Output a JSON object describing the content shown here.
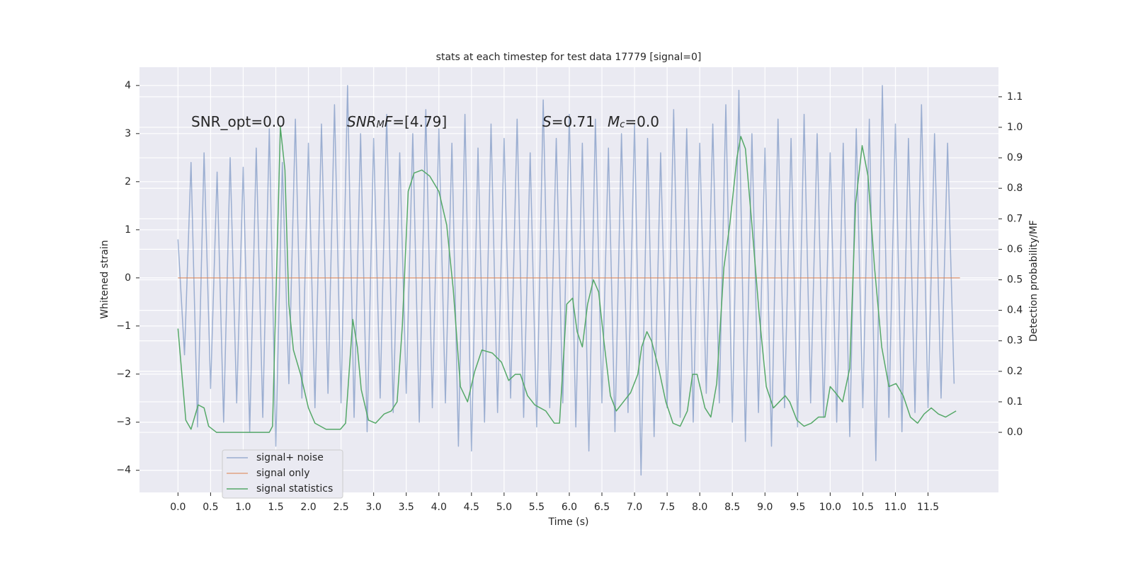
{
  "chart_data": {
    "type": "line",
    "title": "stats at each timestep for test data 17779 [signal=0]",
    "xlabel": "Time (s)",
    "ylabel": "Whitened strain",
    "y2label": "Detection probability/MF",
    "annotations": [
      {
        "parts": [
          {
            "text": "SNR_opt=0.0"
          }
        ]
      },
      {
        "parts": [
          {
            "text": "SNR",
            "italic": true
          },
          {
            "text": "M",
            "italic": true,
            "sub": true
          },
          {
            "text": "F",
            "italic": true
          },
          {
            "text": "=[4.79]"
          }
        ]
      },
      {
        "parts": [
          {
            "text": "S",
            "italic": true
          },
          {
            "text": "=0.71"
          }
        ]
      },
      {
        "parts": [
          {
            "text": "M",
            "italic": true
          },
          {
            "text": "c",
            "italic": true,
            "sub": true
          },
          {
            "text": "=0.0"
          }
        ]
      }
    ],
    "xlim": [
      -0.59,
      12.58
    ],
    "ylim": [
      -4.46,
      4.38
    ],
    "y2lim": [
      -0.197,
      1.197
    ],
    "xticks": [
      {
        "value": 0,
        "label": "0.0"
      },
      0.5,
      {
        "value": 1,
        "label": "1.0"
      },
      1.5,
      {
        "value": 2,
        "label": "2.0"
      },
      2.5,
      {
        "value": 3,
        "label": "3.0"
      },
      3.5,
      {
        "value": 4,
        "label": "4.0"
      },
      4.5,
      {
        "value": 5,
        "label": "5.0"
      },
      5.5,
      {
        "value": 6,
        "label": "6.0"
      },
      6.5,
      {
        "value": 7,
        "label": "7.0"
      },
      7.5,
      {
        "value": 8,
        "label": "8.0"
      },
      8.5,
      {
        "value": 9,
        "label": "9.0"
      },
      9.5,
      {
        "value": 10,
        "label": "10.0"
      },
      10.5,
      {
        "value": 11,
        "label": "11.0"
      },
      11.5
    ],
    "yticks": [
      {
        "value": -4,
        "label": "−4"
      },
      {
        "value": -3,
        "label": "−3"
      },
      {
        "value": -2,
        "label": "−2"
      },
      {
        "value": -1,
        "label": "−1"
      },
      0,
      1,
      2,
      3,
      4
    ],
    "y2ticks": [
      {
        "value": 0,
        "label": "0.0"
      },
      0.1,
      0.2,
      0.3,
      0.4,
      0.5,
      0.6,
      0.7,
      0.8,
      0.9,
      {
        "value": 1,
        "label": "1.0"
      },
      1.1
    ],
    "grid": true,
    "legend": "lower left",
    "series": [
      {
        "name": "signal+ noise",
        "color": "#4c72b0",
        "opacity": 0.5,
        "x": [
          0,
          0.1,
          0.2,
          0.3,
          0.4,
          0.5,
          0.6,
          0.7,
          0.8,
          0.9,
          1,
          1.1,
          1.2,
          1.3,
          1.4,
          1.5,
          1.6,
          1.7,
          1.8,
          1.9,
          2,
          2.1,
          2.2,
          2.3,
          2.4,
          2.5,
          2.6,
          2.7,
          2.8,
          2.9,
          3,
          3.1,
          3.2,
          3.3,
          3.4,
          3.5,
          3.6,
          3.7,
          3.8,
          3.9,
          4,
          4.1,
          4.2,
          4.3,
          4.4,
          4.5,
          4.6,
          4.7,
          4.8,
          4.9,
          5,
          5.1,
          5.2,
          5.3,
          5.4,
          5.5,
          5.6,
          5.7,
          5.8,
          5.9,
          6,
          6.1,
          6.2,
          6.3,
          6.4,
          6.5,
          6.6,
          6.7,
          6.8,
          6.9,
          7,
          7.1,
          7.2,
          7.3,
          7.4,
          7.5,
          7.6,
          7.7,
          7.8,
          7.9,
          8,
          8.1,
          8.2,
          8.3,
          8.4,
          8.5,
          8.6,
          8.7,
          8.8,
          8.9,
          9,
          9.1,
          9.2,
          9.3,
          9.4,
          9.5,
          9.6,
          9.7,
          9.8,
          9.9,
          10,
          10.1,
          10.2,
          10.3,
          10.4,
          10.5,
          10.6,
          10.7,
          10.8,
          10.9,
          11,
          11.1,
          11.2,
          11.3,
          11.4,
          11.5,
          11.6,
          11.7,
          11.8,
          11.9
        ],
        "values": [
          0.8,
          -1.6,
          2.4,
          -3.1,
          2.6,
          -2.3,
          2.2,
          -3.0,
          2.5,
          -2.6,
          2.3,
          -3.2,
          2.7,
          -2.9,
          3.1,
          -3.5,
          2.4,
          -2.2,
          3.3,
          -2.5,
          2.8,
          -2.7,
          3.2,
          -2.4,
          3.6,
          -2.6,
          4.0,
          -2.9,
          3.0,
          -3.2,
          2.9,
          -2.5,
          3.4,
          -2.8,
          2.6,
          -2.4,
          3.0,
          -3.0,
          3.5,
          -2.7,
          3.1,
          -2.6,
          2.8,
          -3.5,
          3.4,
          -3.6,
          2.7,
          -3.0,
          3.2,
          -2.8,
          2.9,
          -2.5,
          3.3,
          -2.9,
          2.6,
          -3.1,
          3.7,
          -2.7,
          2.9,
          -2.6,
          3.4,
          -3.1,
          2.8,
          -3.6,
          3.3,
          -2.6,
          2.7,
          -3.2,
          3.0,
          -2.8,
          3.2,
          -4.1,
          2.9,
          -3.3,
          2.6,
          -2.7,
          3.5,
          -2.9,
          3.1,
          -3.0,
          2.8,
          -2.4,
          3.2,
          -2.6,
          3.6,
          -3.0,
          3.9,
          -3.4,
          3.0,
          -2.8,
          2.7,
          -3.5,
          3.3,
          -2.7,
          2.9,
          -3.1,
          3.4,
          -2.6,
          3.0,
          -2.9,
          2.6,
          -3.0,
          2.8,
          -3.3,
          3.1,
          -2.7,
          3.3,
          -3.8,
          4.0,
          -2.9,
          3.2,
          -3.2,
          2.9,
          -2.8,
          3.6,
          -2.7,
          3.0,
          -2.5,
          2.8,
          -2.2
        ]
      },
      {
        "name": "signal only",
        "color": "#dd8452",
        "opacity": 0.7,
        "x": [
          0,
          11.99
        ],
        "values": [
          0,
          0
        ]
      },
      {
        "name": "signal statistics",
        "color": "#55a868",
        "opacity": 1,
        "axis": "y2",
        "x": [
          0,
          0.12,
          0.2,
          0.31,
          0.4,
          0.47,
          0.59,
          1.4,
          1.45,
          1.57,
          1.64,
          1.7,
          1.77,
          1.88,
          2.0,
          2.1,
          2.27,
          2.49,
          2.57,
          2.68,
          2.75,
          2.81,
          2.92,
          3.03,
          3.16,
          3.27,
          3.36,
          3.44,
          3.53,
          3.62,
          3.74,
          3.86,
          4.0,
          4.12,
          4.22,
          4.33,
          4.44,
          4.55,
          4.66,
          4.82,
          4.96,
          5.07,
          5.17,
          5.25,
          5.36,
          5.47,
          5.64,
          5.77,
          5.85,
          5.96,
          6.05,
          6.12,
          6.2,
          6.28,
          6.37,
          6.45,
          6.53,
          6.63,
          6.72,
          6.83,
          6.94,
          7.05,
          7.11,
          7.19,
          7.26,
          7.37,
          7.48,
          7.59,
          7.7,
          7.81,
          7.89,
          7.96,
          8.08,
          8.17,
          8.26,
          8.37,
          8.46,
          8.57,
          8.63,
          8.7,
          8.8,
          8.91,
          9.02,
          9.13,
          9.22,
          9.31,
          9.38,
          9.49,
          9.6,
          9.71,
          9.82,
          9.92,
          10.0,
          10.08,
          10.19,
          10.3,
          10.39,
          10.49,
          10.58,
          10.68,
          10.79,
          10.9,
          11.01,
          11.12,
          11.23,
          11.34,
          11.44,
          11.55,
          11.66,
          11.77,
          11.93
        ],
        "values": [
          0.34,
          0.04,
          0.01,
          0.09,
          0.08,
          0.02,
          0.0,
          0.0,
          0.02,
          1.0,
          0.86,
          0.42,
          0.27,
          0.19,
          0.08,
          0.03,
          0.01,
          0.01,
          0.03,
          0.37,
          0.28,
          0.14,
          0.04,
          0.03,
          0.06,
          0.07,
          0.1,
          0.35,
          0.79,
          0.85,
          0.86,
          0.84,
          0.79,
          0.68,
          0.47,
          0.15,
          0.1,
          0.2,
          0.27,
          0.26,
          0.23,
          0.17,
          0.19,
          0.19,
          0.12,
          0.09,
          0.07,
          0.03,
          0.03,
          0.42,
          0.44,
          0.33,
          0.28,
          0.42,
          0.5,
          0.46,
          0.3,
          0.12,
          0.07,
          0.1,
          0.13,
          0.19,
          0.28,
          0.33,
          0.3,
          0.21,
          0.1,
          0.03,
          0.02,
          0.07,
          0.19,
          0.19,
          0.08,
          0.05,
          0.16,
          0.54,
          0.68,
          0.9,
          0.97,
          0.93,
          0.68,
          0.39,
          0.15,
          0.08,
          0.1,
          0.12,
          0.1,
          0.04,
          0.02,
          0.03,
          0.05,
          0.05,
          0.15,
          0.13,
          0.1,
          0.21,
          0.75,
          0.94,
          0.84,
          0.54,
          0.28,
          0.15,
          0.16,
          0.12,
          0.05,
          0.03,
          0.06,
          0.08,
          0.06,
          0.05,
          0.07
        ]
      }
    ]
  }
}
